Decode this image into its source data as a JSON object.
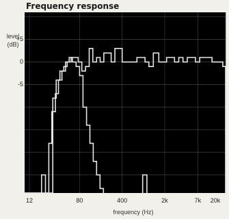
{
  "chart_data": {
    "type": "line",
    "title": "Frequency response",
    "ylabel_line1": "level",
    "ylabel_line2": "(dB)",
    "xlabel": "frequency (Hz)",
    "x_scale": "log",
    "xlim": [
      10,
      20000
    ],
    "ylim": [
      -29,
      11
    ],
    "y_ticks": [
      {
        "value": 5,
        "label": "+5"
      },
      {
        "value": 0,
        "label": "0"
      },
      {
        "value": -5,
        "label": "-5"
      }
    ],
    "x_ticks": [
      {
        "value": 12,
        "label": "12"
      },
      {
        "value": 80,
        "label": "80"
      },
      {
        "value": 400,
        "label": "400"
      },
      {
        "value": 2000,
        "label": "2k"
      },
      {
        "value": 7000,
        "label": "7k"
      },
      {
        "value": 20000,
        "label": "20k"
      }
    ],
    "grid": true,
    "background": "#000000",
    "line_color": "#e6e6e6",
    "series": [
      {
        "x": [
          10,
          25,
          29,
          33,
          38,
          44,
          50,
          58,
          66,
          76,
          87,
          100,
          115,
          132,
          152,
          174,
          200,
          230,
          264,
          304,
          350,
          400,
          600,
          700,
          800,
          950,
          1100,
          1300,
          1600,
          1850,
          2150,
          2500,
          2900,
          3400,
          4000,
          4700,
          5500,
          6400,
          7500,
          8800,
          10300,
          12000,
          14000,
          16000,
          18000,
          20000
        ],
        "y": [
          -29,
          -29,
          -8,
          -4,
          -2,
          -1,
          0,
          1,
          1,
          0,
          -2,
          -1,
          3,
          0,
          1,
          0,
          2,
          2,
          0,
          3,
          3,
          0,
          0,
          1,
          1,
          0,
          -1,
          2,
          0,
          0,
          1,
          1,
          0,
          1,
          0,
          1,
          1,
          0,
          1,
          1,
          1,
          0,
          0,
          0,
          -1,
          -29
        ]
      },
      {
        "x": [
          10,
          17,
          19,
          22,
          25,
          28,
          32,
          36,
          41,
          47,
          54,
          61,
          70,
          80,
          91,
          104,
          118,
          134,
          152,
          173,
          197
        ],
        "y": [
          -29,
          -29,
          -25,
          -29,
          -18,
          -11,
          -7,
          -4,
          -2,
          0,
          1,
          0,
          -1,
          -3,
          -10,
          -14,
          -18,
          -22,
          -25,
          -28,
          -29
        ]
      },
      {
        "x": [
          850,
          870,
          1000,
          1020
        ],
        "y": [
          -29,
          -25,
          -25,
          -29
        ]
      }
    ]
  }
}
